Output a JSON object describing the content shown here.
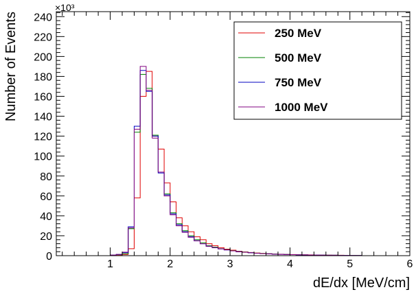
{
  "chart_data": {
    "type": "histogram",
    "xlabel": "dE/dx [MeV/cm]",
    "ylabel": "Number of Events",
    "y_scale_label": "×10³",
    "xlim": [
      0.1,
      6.0
    ],
    "ylim": [
      0,
      245
    ],
    "x_ticks": [
      1,
      2,
      3,
      4,
      5,
      6
    ],
    "y_ticks": [
      0,
      20,
      40,
      60,
      80,
      100,
      120,
      140,
      160,
      180,
      200,
      220,
      240
    ],
    "bin_edges": [
      1.0,
      1.1,
      1.2,
      1.3,
      1.4,
      1.5,
      1.6,
      1.7,
      1.8,
      1.9,
      2.0,
      2.1,
      2.2,
      2.3,
      2.4,
      2.5,
      2.6,
      2.7,
      2.8,
      2.9,
      3.0,
      3.1,
      3.2,
      3.3,
      3.4,
      3.5,
      3.6,
      3.7,
      3.8,
      3.9,
      4.0,
      4.1,
      4.2,
      4.3,
      4.4,
      4.5,
      4.6,
      4.7,
      4.8,
      4.9,
      5.0,
      5.1,
      5.2
    ],
    "series": [
      {
        "name": "250 MeV",
        "color": "#e00000",
        "values": [
          0.5,
          0.8,
          1.2,
          7,
          58,
          160,
          185,
          120,
          107,
          73,
          54,
          38,
          30,
          24,
          19,
          16,
          12,
          10,
          8,
          6.5,
          5.5,
          4.5,
          3.8,
          3.2,
          2.7,
          2.3,
          2,
          1.7,
          1.5,
          1.3,
          1.1,
          1,
          0.9,
          0.8,
          0.7,
          0.6,
          0.5,
          0.4,
          0.4,
          0.3,
          0.3,
          0.2
        ]
      },
      {
        "name": "500 MeV",
        "color": "#008000",
        "values": [
          0.5,
          1,
          2,
          27,
          124,
          182,
          168,
          121,
          84,
          62,
          43,
          32,
          25,
          20,
          16,
          13,
          10,
          8.5,
          7,
          6,
          5,
          4.2,
          3.6,
          3,
          2.5,
          2.2,
          1.9,
          1.6,
          1.4,
          1.2,
          1,
          0.9,
          0.8,
          0.7,
          0.6,
          0.5,
          0.4,
          0.4,
          0.3,
          0.3,
          0.2,
          0.2
        ]
      },
      {
        "name": "750 MeV",
        "color": "#0000c0",
        "values": [
          0.6,
          1.2,
          3,
          29,
          130,
          186,
          165,
          120,
          83,
          61,
          42,
          31,
          24,
          19,
          15,
          12,
          9.5,
          8,
          6.8,
          5.8,
          4.8,
          4,
          3.4,
          2.9,
          2.4,
          2.1,
          1.8,
          1.5,
          1.3,
          1.1,
          1,
          0.9,
          0.8,
          0.7,
          0.6,
          0.5,
          0.4,
          0.4,
          0.3,
          0.3,
          0.2,
          0.2
        ]
      },
      {
        "name": "1000 MeV",
        "color": "#800080",
        "values": [
          0.6,
          1.3,
          3.5,
          28,
          127,
          190,
          166,
          118,
          84,
          60,
          41,
          30,
          23.5,
          18.5,
          15,
          12,
          9.5,
          8,
          6.8,
          5.8,
          4.8,
          4,
          3.4,
          2.9,
          2.4,
          2.1,
          1.8,
          1.5,
          1.3,
          1.1,
          1,
          0.9,
          0.8,
          0.7,
          0.6,
          0.5,
          0.4,
          0.4,
          0.3,
          0.3,
          0.2,
          0.2
        ]
      }
    ],
    "legend_position": "top-right",
    "grid": false
  }
}
